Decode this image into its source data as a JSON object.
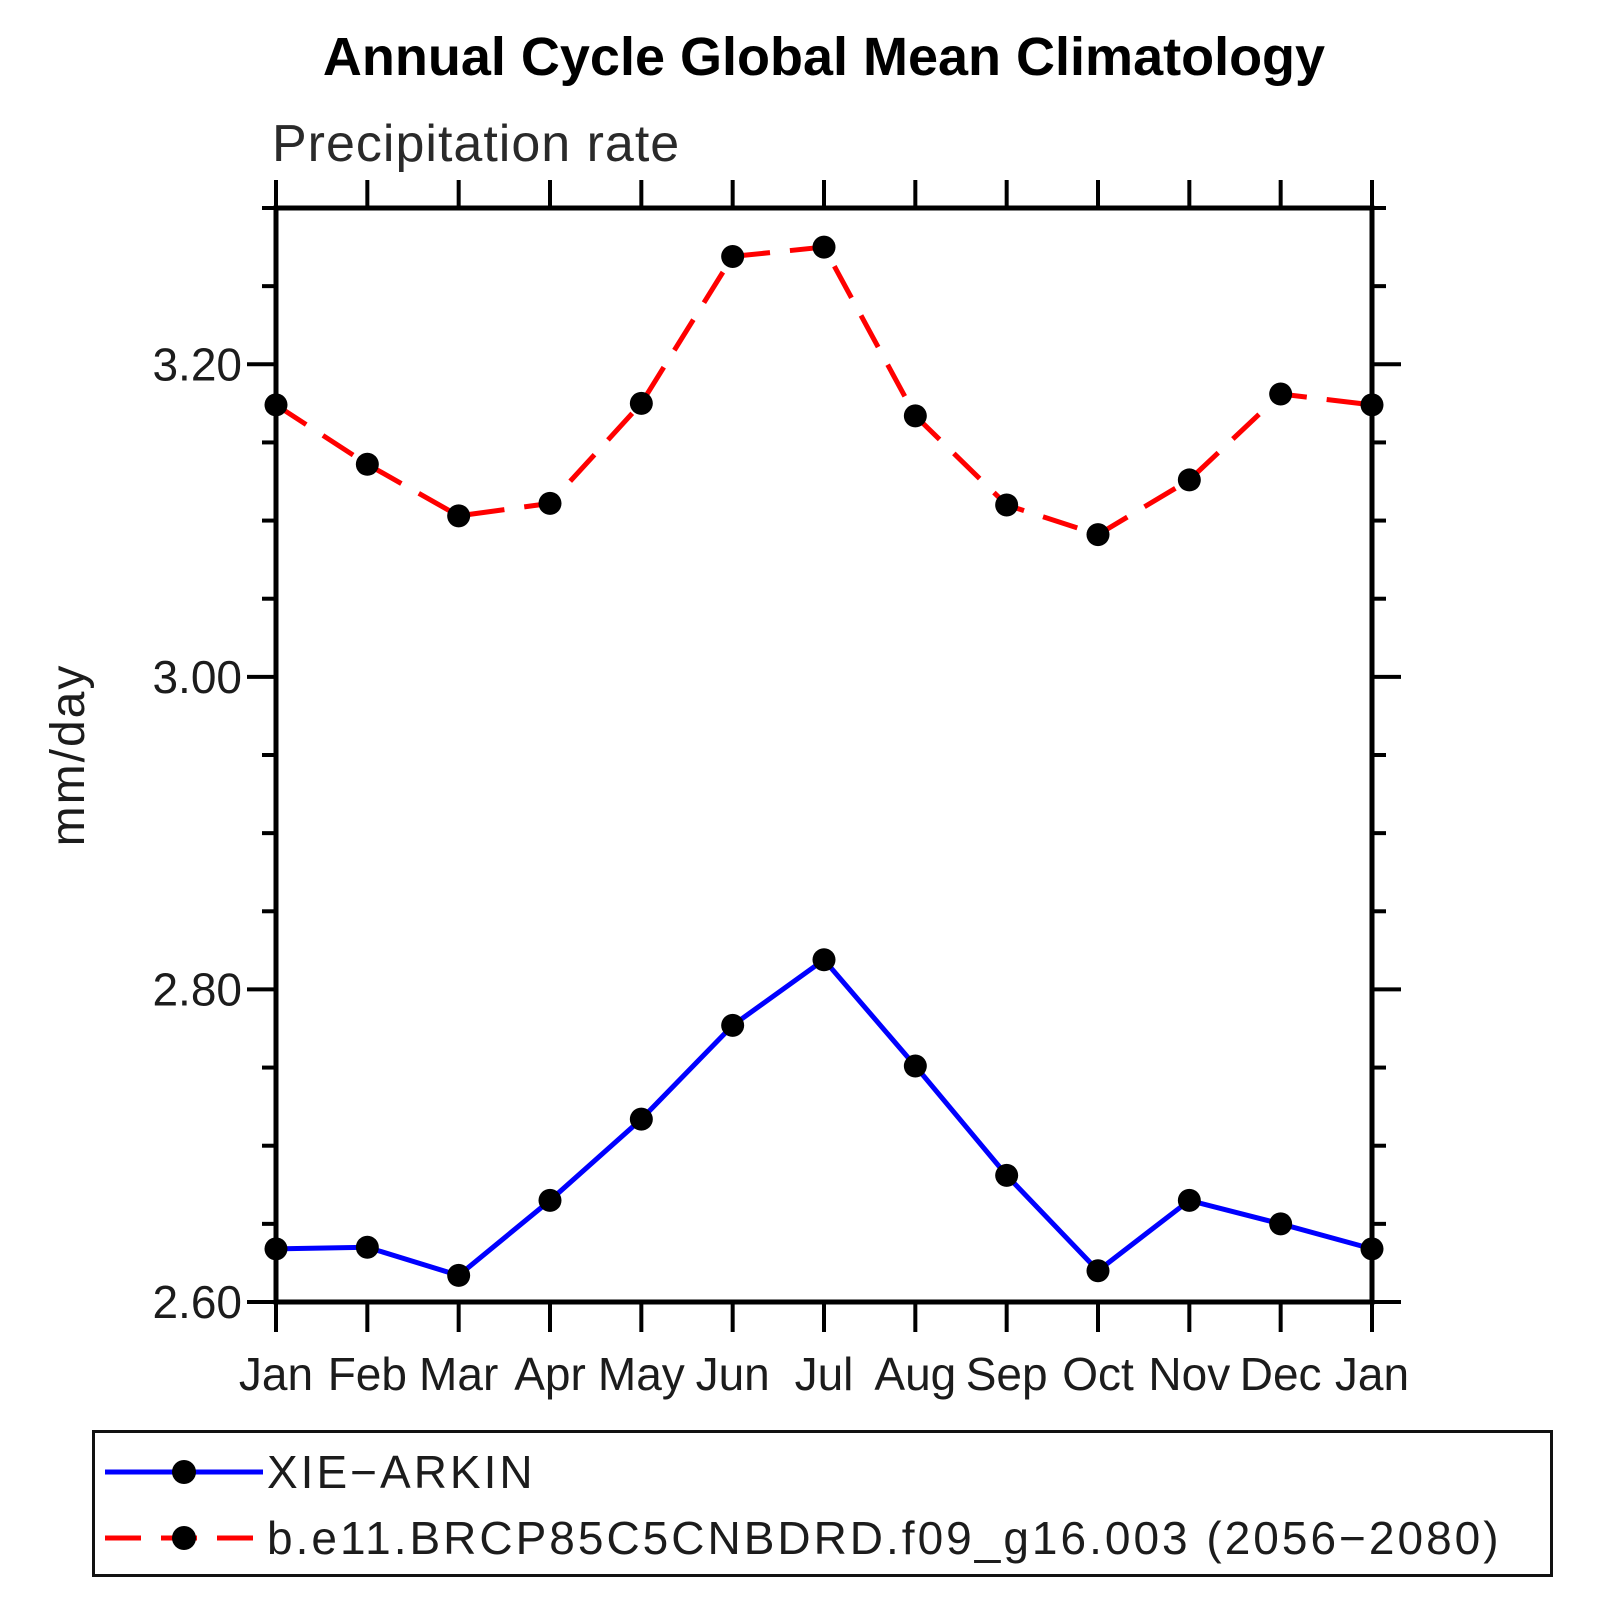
{
  "chart_data": {
    "type": "line",
    "title": "Annual Cycle Global Mean Climatology",
    "subtitle": "Precipitation rate",
    "ylabel": "mm/day",
    "xlabel": "",
    "categories": [
      "Jan",
      "Feb",
      "Mar",
      "Apr",
      "May",
      "Jun",
      "Jul",
      "Aug",
      "Sep",
      "Oct",
      "Nov",
      "Dec",
      "Jan"
    ],
    "ylim": [
      2.6,
      3.3
    ],
    "ytick_values": [
      2.6,
      2.8,
      3.0,
      3.2
    ],
    "ytick_labels": [
      "2.60",
      "2.80",
      "3.00",
      "3.20"
    ],
    "yminor_step": 0.05,
    "grid": false,
    "legend_position": "bottom",
    "axis_color": "#000000",
    "marker_color": "#000000",
    "series": [
      {
        "name": "XIE−ARKIN",
        "color": "#0000ff",
        "style": "solid",
        "marker": "circle",
        "values": [
          2.634,
          2.635,
          2.617,
          2.665,
          2.717,
          2.777,
          2.819,
          2.751,
          2.681,
          2.62,
          2.665,
          2.65,
          2.634
        ]
      },
      {
        "name": "b.e11.BRCP85C5CNBDRD.f09_g16.003 (2056−2080)",
        "color": "#ff0000",
        "style": "dashed",
        "marker": "circle",
        "values": [
          3.174,
          3.136,
          3.103,
          3.111,
          3.175,
          3.269,
          3.275,
          3.167,
          3.11,
          3.091,
          3.126,
          3.181,
          3.174
        ]
      }
    ]
  }
}
